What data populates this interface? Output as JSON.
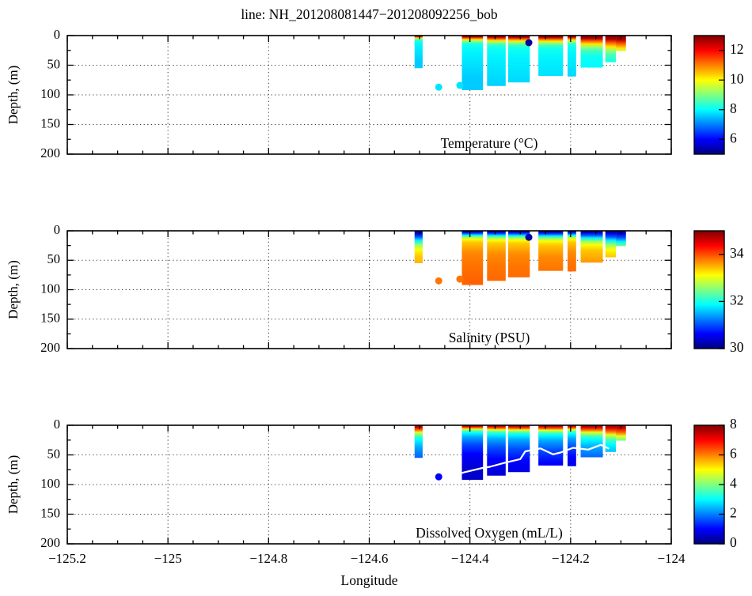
{
  "title": "line: NH_201208081447−201208092256_bob",
  "xlabel": "Longitude",
  "ylabel": "Depth, (m)",
  "axes": {
    "xlim": [
      -125.2,
      -124.0
    ],
    "ylim": [
      0,
      200
    ],
    "xticks": [
      {
        "v": -125.2,
        "label": "−125.2"
      },
      {
        "v": -125.0,
        "label": "−125"
      },
      {
        "v": -124.8,
        "label": "−124.8"
      },
      {
        "v": -124.6,
        "label": "−124.6"
      },
      {
        "v": -124.4,
        "label": "−124.4"
      },
      {
        "v": -124.2,
        "label": "−124.2"
      },
      {
        "v": -124.0,
        "label": "−124"
      }
    ],
    "yticks": [
      {
        "v": 0,
        "label": "0"
      },
      {
        "v": 50,
        "label": "50"
      },
      {
        "v": 100,
        "label": "100"
      },
      {
        "v": 150,
        "label": "150"
      },
      {
        "v": 200,
        "label": "200"
      }
    ],
    "x_minor_step": 0.05,
    "y_minor_step": 25,
    "grid_x": [
      -125.0,
      -124.8,
      -124.6,
      -124.4,
      -124.2
    ],
    "grid_y": [
      50,
      100,
      150
    ],
    "grid_style": "dotted"
  },
  "stations": [
    {
      "lon0": -124.51,
      "lon1": -124.494,
      "zmax": 55
    },
    {
      "lon0": -124.416,
      "lon1": -124.374,
      "zmax": 92
    },
    {
      "lon0": -124.366,
      "lon1": -124.329,
      "zmax": 85
    },
    {
      "lon0": -124.324,
      "lon1": -124.281,
      "zmax": 79
    },
    {
      "lon0": -124.264,
      "lon1": -124.215,
      "zmax": 68
    },
    {
      "lon0": -124.206,
      "lon1": -124.189,
      "zmax": 69
    },
    {
      "lon0": -124.18,
      "lon1": -124.136,
      "zmax": 54
    },
    {
      "lon0": -124.131,
      "lon1": -124.11,
      "zmax": 45
    },
    {
      "lon0": -124.11,
      "lon1": -124.09,
      "zmax": 26
    }
  ],
  "chart_data": [
    {
      "type": "heatmap",
      "variable": "temperature",
      "annotation": "Temperature (°C)",
      "colormap": "jet",
      "clim": [
        5,
        13
      ],
      "colorbar_ticks": [
        {
          "v": 12,
          "label": "12"
        },
        {
          "v": 10,
          "label": "10"
        },
        {
          "v": 8,
          "label": "8"
        },
        {
          "v": 6,
          "label": "6"
        }
      ],
      "profile": [
        [
          0,
          13.1
        ],
        [
          3,
          12.6
        ],
        [
          6,
          11.2
        ],
        [
          9,
          10.2
        ],
        [
          12,
          9.2
        ],
        [
          16,
          8.5
        ],
        [
          22,
          8.1
        ],
        [
          40,
          7.9
        ],
        [
          60,
          7.8
        ],
        [
          95,
          7.6
        ]
      ],
      "station_cline_scale": [
        0.45,
        0.75,
        0.95,
        1.0,
        1.05,
        0.85,
        1.6,
        2.1,
        2.4
      ],
      "spots": [
        {
          "lon": -124.462,
          "depth": 87,
          "value": 7.8
        },
        {
          "lon": -124.42,
          "depth": 84,
          "value": 7.8
        },
        {
          "lon": -124.283,
          "depth": 12,
          "value": 5.2
        }
      ],
      "contour": null
    },
    {
      "type": "heatmap",
      "variable": "salinity",
      "annotation": "Salinity (PSU)",
      "colormap": "jet",
      "clim": [
        30,
        35
      ],
      "colorbar_ticks": [
        {
          "v": 34,
          "label": "34"
        },
        {
          "v": 32,
          "label": "32"
        },
        {
          "v": 30,
          "label": "30"
        }
      ],
      "profile": [
        [
          0,
          30.1
        ],
        [
          2,
          30.4
        ],
        [
          5,
          31.0
        ],
        [
          8,
          31.8
        ],
        [
          12,
          32.6
        ],
        [
          16,
          33.1
        ],
        [
          22,
          33.4
        ],
        [
          40,
          33.7
        ],
        [
          60,
          33.8
        ],
        [
          95,
          33.9
        ]
      ],
      "station_cline_scale": [
        2.0,
        0.9,
        1.0,
        1.0,
        1.1,
        0.9,
        1.5,
        2.0,
        2.3
      ],
      "spots": [
        {
          "lon": -124.462,
          "depth": 85,
          "value": 33.8
        },
        {
          "lon": -124.42,
          "depth": 82,
          "value": 33.8
        },
        {
          "lon": -124.283,
          "depth": 11,
          "value": 30.2
        }
      ],
      "contour": null
    },
    {
      "type": "heatmap",
      "variable": "dissolved_oxygen",
      "annotation": "Dissolved Oxygen (mL/L)",
      "colormap": "jet",
      "clim": [
        0,
        8
      ],
      "colorbar_ticks": [
        {
          "v": 8,
          "label": "8"
        },
        {
          "v": 6,
          "label": "6"
        },
        {
          "v": 4,
          "label": "4"
        },
        {
          "v": 2,
          "label": "2"
        },
        {
          "v": 0,
          "label": "0"
        }
      ],
      "profile": [
        [
          0,
          7.8
        ],
        [
          2,
          7.4
        ],
        [
          5,
          6.3
        ],
        [
          8,
          4.8
        ],
        [
          12,
          3.6
        ],
        [
          16,
          3.0
        ],
        [
          25,
          2.3
        ],
        [
          40,
          1.6
        ],
        [
          60,
          1.0
        ],
        [
          95,
          0.6
        ]
      ],
      "station_cline_scale": [
        1.5,
        0.8,
        0.95,
        1.0,
        1.05,
        0.9,
        1.5,
        2.0,
        2.3
      ],
      "spots": [
        {
          "lon": -124.462,
          "depth": 87,
          "value": 1.0
        }
      ],
      "contour": {
        "color": "#ffffff",
        "points": [
          [
            -124.435,
            85
          ],
          [
            -124.41,
            79
          ],
          [
            -124.375,
            72
          ],
          [
            -124.36,
            70
          ],
          [
            -124.33,
            63
          ],
          [
            -124.3,
            57
          ],
          [
            -124.29,
            44
          ],
          [
            -124.26,
            39
          ],
          [
            -124.235,
            49
          ],
          [
            -124.22,
            46
          ],
          [
            -124.195,
            38
          ],
          [
            -124.165,
            41
          ],
          [
            -124.14,
            33
          ],
          [
            -124.125,
            39
          ]
        ]
      }
    }
  ],
  "colors": {
    "background": "#ffffff",
    "axis": "#000000",
    "grid": "#333333",
    "contour": "#ffffff"
  }
}
